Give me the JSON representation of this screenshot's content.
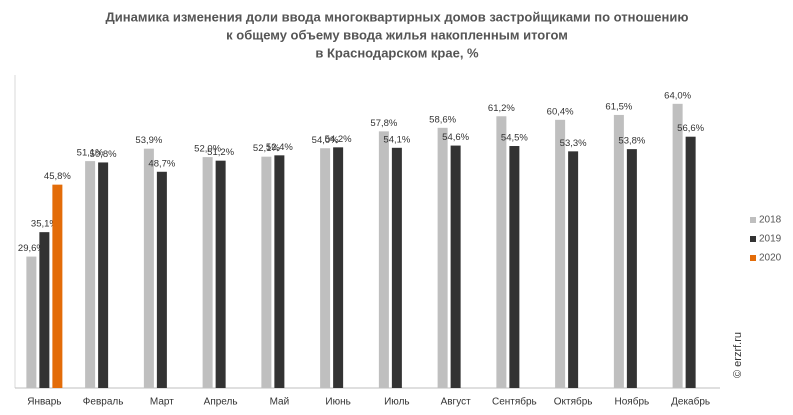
{
  "chart_data": {
    "type": "bar",
    "title": [
      "Динамика изменения доли ввода многоквартирных домов застройщиками по отношению",
      "к общему объему ввода жилья накопленным итогом",
      "в Краснодарском крае, %"
    ],
    "watermark": "© erzrf.ru",
    "categories": [
      "Январь",
      "Февраль",
      "Март",
      "Апрель",
      "Май",
      "Июнь",
      "Июль",
      "Август",
      "Сентябрь",
      "Октябрь",
      "Ноябрь",
      "Декабрь"
    ],
    "series": [
      {
        "name": "2018",
        "color": "#bfbfbf",
        "values": [
          29.6,
          51.1,
          53.9,
          52.0,
          52.1,
          54.0,
          57.8,
          58.6,
          61.2,
          60.4,
          61.5,
          64.0
        ],
        "value_labels": [
          "29,6%",
          "51,1%",
          "53,9%",
          "52,0%",
          "52,1%",
          "54,0%",
          "57,8%",
          "58,6%",
          "61,2%",
          "60,4%",
          "61,5%",
          "64,0%"
        ]
      },
      {
        "name": "2019",
        "color": "#333333",
        "values": [
          35.1,
          50.8,
          48.7,
          51.2,
          52.4,
          54.2,
          54.1,
          54.6,
          54.5,
          53.3,
          53.8,
          56.6
        ],
        "value_labels": [
          "35,1%",
          "50,8%",
          "48,7%",
          "51,2%",
          "52,4%",
          "54,2%",
          "54,1%",
          "54,6%",
          "54,5%",
          "53,3%",
          "53,8%",
          "56,6%"
        ]
      },
      {
        "name": "2020",
        "color": "#e36c09",
        "values": [
          45.8,
          null,
          null,
          null,
          null,
          null,
          null,
          null,
          null,
          null,
          null,
          null
        ],
        "value_labels": [
          "45,8%",
          null,
          null,
          null,
          null,
          null,
          null,
          null,
          null,
          null,
          null,
          null
        ]
      }
    ],
    "legend": "right"
  }
}
